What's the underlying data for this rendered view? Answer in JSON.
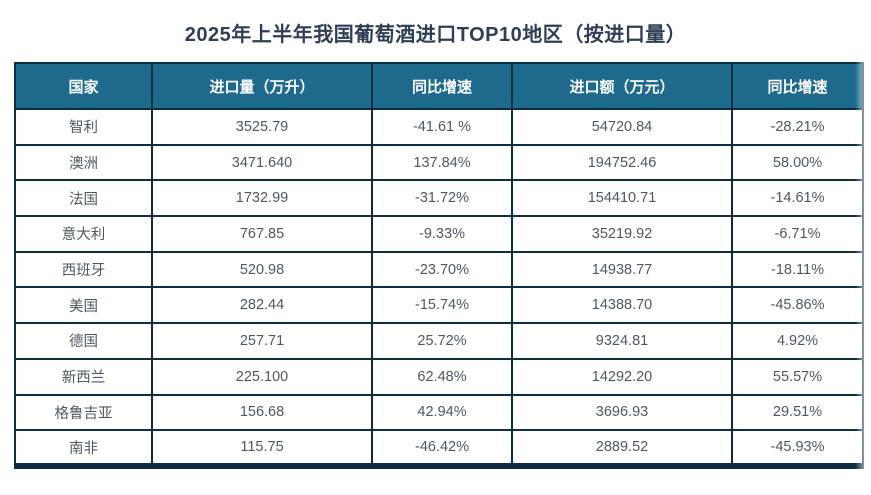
{
  "title": "2025年上半年我国葡萄酒进口TOP10地区（按进口量）",
  "colors": {
    "header_bg": "#1e6a8c",
    "header_text": "#ffffff",
    "border": "#0d2d40",
    "title_text": "#2e3f55",
    "cell_text": "#4c5862"
  },
  "chart_data": {
    "type": "table",
    "title": "2025年上半年我国葡萄酒进口TOP10地区（按进口量）",
    "columns": [
      "国家",
      "进口量（万升）",
      "同比增速",
      "进口额（万元）",
      "同比增速"
    ],
    "rows": [
      [
        "智利",
        "3525.79",
        "-41.61 %",
        "54720.84",
        "-28.21%"
      ],
      [
        "澳洲",
        "3471.640",
        "137.84%",
        "194752.46",
        "58.00%"
      ],
      [
        "法国",
        "1732.99",
        "-31.72%",
        "154410.71",
        "-14.61%"
      ],
      [
        "意大利",
        "767.85",
        "-9.33%",
        "35219.92",
        "-6.71%"
      ],
      [
        "西班牙",
        "520.98",
        "-23.70%",
        "14938.77",
        "-18.11%"
      ],
      [
        "美国",
        "282.44",
        "-15.74%",
        "14388.70",
        "-45.86%"
      ],
      [
        "德国",
        "257.71",
        "25.72%",
        "9324.81",
        "4.92%"
      ],
      [
        "新西兰",
        "225.100",
        "62.48%",
        "14292.20",
        "55.57%"
      ],
      [
        "格鲁吉亚",
        "156.68",
        "42.94%",
        "3696.93",
        "29.51%"
      ],
      [
        "南非",
        "115.75",
        "-46.42%",
        "2889.52",
        "-45.93%"
      ]
    ]
  }
}
